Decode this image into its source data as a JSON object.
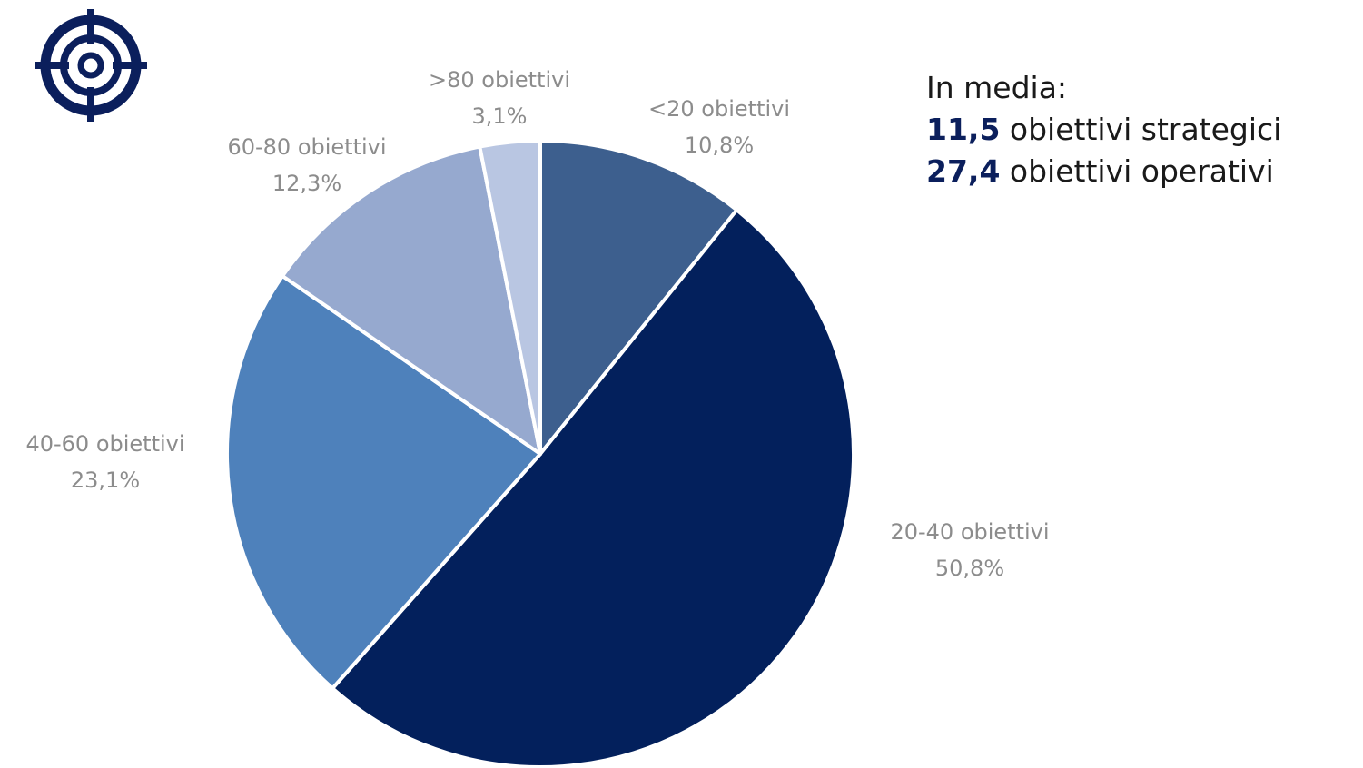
{
  "chart_data": {
    "type": "pie",
    "title": "",
    "slices": [
      {
        "label": "<20 obiettivi",
        "value": 10.8,
        "value_label": "10,8%",
        "color": "#3d5f8e"
      },
      {
        "label": "20-40 obiettivi",
        "value": 50.8,
        "value_label": "50,8%",
        "color": "#03205c"
      },
      {
        "label": "40-60 obiettivi",
        "value": 23.1,
        "value_label": "23,1%",
        "color": "#4e81bb"
      },
      {
        "label": "60-80 obiettivi",
        "value": 12.3,
        "value_label": "12,3%",
        "color": "#96a9cf"
      },
      {
        "label": ">80 obiettivi",
        "value": 3.1,
        "value_label": "3,1%",
        "color": "#b9c6e2"
      }
    ]
  },
  "summary": {
    "title": "In media:",
    "lines": [
      {
        "number": "11,5",
        "text": " obiettivi strategici"
      },
      {
        "number": "27,4",
        "text": " obiettivi operativi"
      }
    ]
  },
  "logo": {
    "icon": "target-icon",
    "color": "#0b1f5c"
  }
}
